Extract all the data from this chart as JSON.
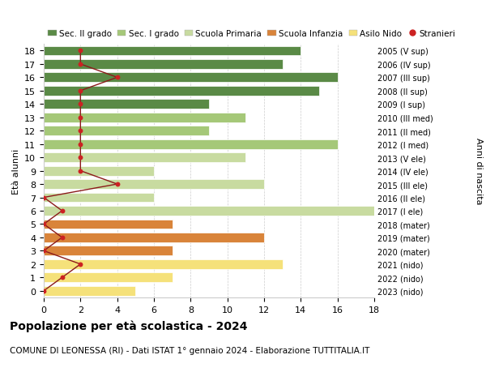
{
  "ages": [
    0,
    1,
    2,
    3,
    4,
    5,
    6,
    7,
    8,
    9,
    10,
    11,
    12,
    13,
    14,
    15,
    16,
    17,
    18
  ],
  "right_labels": [
    "2023 (nido)",
    "2022 (nido)",
    "2021 (nido)",
    "2020 (mater)",
    "2019 (mater)",
    "2018 (mater)",
    "2017 (I ele)",
    "2016 (II ele)",
    "2015 (III ele)",
    "2014 (IV ele)",
    "2013 (V ele)",
    "2012 (I med)",
    "2011 (II med)",
    "2010 (III med)",
    "2009 (I sup)",
    "2008 (II sup)",
    "2007 (III sup)",
    "2006 (IV sup)",
    "2005 (V sup)"
  ],
  "bar_values": [
    5,
    7,
    13,
    7,
    12,
    7,
    18,
    6,
    12,
    6,
    11,
    16,
    9,
    11,
    9,
    15,
    16,
    13,
    14
  ],
  "bar_colors": [
    "#f5e17a",
    "#f5e17a",
    "#f5e17a",
    "#d9843a",
    "#d9843a",
    "#d9843a",
    "#c8dba0",
    "#c8dba0",
    "#c8dba0",
    "#c8dba0",
    "#c8dba0",
    "#a5c878",
    "#a5c878",
    "#a5c878",
    "#5a8a46",
    "#5a8a46",
    "#5a8a46",
    "#5a8a46",
    "#5a8a46"
  ],
  "stranieri_values": [
    0,
    1,
    2,
    0,
    1,
    0,
    1,
    0,
    4,
    2,
    2,
    2,
    2,
    2,
    2,
    2,
    4,
    2,
    2
  ],
  "legend_labels": [
    "Sec. II grado",
    "Sec. I grado",
    "Scuola Primaria",
    "Scuola Infanzia",
    "Asilo Nido",
    "Stranieri"
  ],
  "legend_colors": [
    "#5a8a46",
    "#a5c878",
    "#c8dba0",
    "#d9843a",
    "#f5e17a",
    "#cc2222"
  ],
  "title": "Popolazione per età scolastica - 2024",
  "subtitle": "COMUNE DI LEONESSA (RI) - Dati ISTAT 1° gennaio 2024 - Elaborazione TUTTITALIA.IT",
  "ylabel_left": "Età alunni",
  "ylabel_right": "Anni di nascita",
  "xlim": [
    0,
    18
  ],
  "ylim": [
    -0.5,
    18.5
  ],
  "bg_color": "#ffffff",
  "grid_color": "#cccccc"
}
